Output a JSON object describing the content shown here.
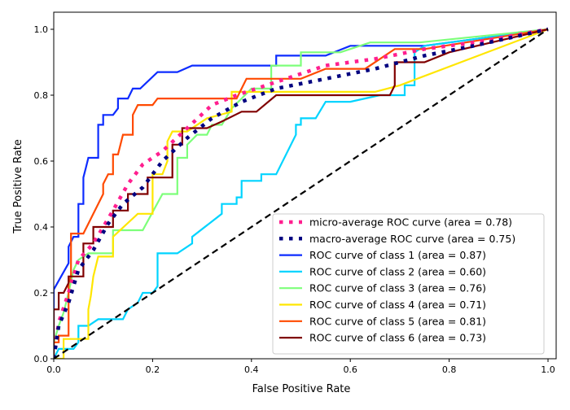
{
  "chart_data": {
    "type": "line",
    "title": "",
    "xlabel": "False Positive Rate",
    "ylabel": "True Positive Rate",
    "xlim": [
      0.0,
      1.0
    ],
    "ylim": [
      0.0,
      1.05
    ],
    "xticks": [
      "0.0",
      "0.2",
      "0.4",
      "0.6",
      "0.8",
      "1.0"
    ],
    "yticks": [
      "0.0",
      "0.2",
      "0.4",
      "0.6",
      "0.8",
      "1.0"
    ],
    "grid": false,
    "legend_placement": "lower-right",
    "series": [
      {
        "name": "micro-average ROC curve (area = 0.78)",
        "color": "#ff1f8f",
        "style": "dotted",
        "points": [
          [
            0,
            0
          ],
          [
            0.01,
            0.11
          ],
          [
            0.03,
            0.2
          ],
          [
            0.05,
            0.3
          ],
          [
            0.08,
            0.35
          ],
          [
            0.12,
            0.45
          ],
          [
            0.15,
            0.53
          ],
          [
            0.18,
            0.59
          ],
          [
            0.22,
            0.63
          ],
          [
            0.27,
            0.7
          ],
          [
            0.32,
            0.77
          ],
          [
            0.37,
            0.8
          ],
          [
            0.45,
            0.84
          ],
          [
            0.55,
            0.89
          ],
          [
            0.65,
            0.91
          ],
          [
            0.75,
            0.94
          ],
          [
            0.85,
            0.96
          ],
          [
            1,
            1
          ]
        ]
      },
      {
        "name": "macro-average ROC curve (area = 0.75)",
        "color": "#000080",
        "style": "dotted",
        "points": [
          [
            0,
            0
          ],
          [
            0.01,
            0.1
          ],
          [
            0.03,
            0.17
          ],
          [
            0.05,
            0.27
          ],
          [
            0.08,
            0.33
          ],
          [
            0.11,
            0.41
          ],
          [
            0.14,
            0.47
          ],
          [
            0.18,
            0.52
          ],
          [
            0.22,
            0.6
          ],
          [
            0.27,
            0.67
          ],
          [
            0.32,
            0.73
          ],
          [
            0.38,
            0.78
          ],
          [
            0.45,
            0.82
          ],
          [
            0.55,
            0.85
          ],
          [
            0.65,
            0.88
          ],
          [
            0.75,
            0.92
          ],
          [
            0.85,
            0.95
          ],
          [
            1,
            1
          ]
        ]
      },
      {
        "name": "ROC curve of class 1 (area = 0.87)",
        "color": "#0d2cff",
        "style": "solid",
        "points": [
          [
            0,
            0
          ],
          [
            0,
            0.21
          ],
          [
            0.03,
            0.29
          ],
          [
            0.03,
            0.34
          ],
          [
            0.04,
            0.37
          ],
          [
            0.05,
            0.37
          ],
          [
            0.05,
            0.47
          ],
          [
            0.06,
            0.47
          ],
          [
            0.06,
            0.55
          ],
          [
            0.065,
            0.58
          ],
          [
            0.07,
            0.61
          ],
          [
            0.09,
            0.61
          ],
          [
            0.09,
            0.71
          ],
          [
            0.1,
            0.71
          ],
          [
            0.1,
            0.74
          ],
          [
            0.12,
            0.74
          ],
          [
            0.13,
            0.76
          ],
          [
            0.13,
            0.79
          ],
          [
            0.15,
            0.79
          ],
          [
            0.16,
            0.82
          ],
          [
            0.175,
            0.82
          ],
          [
            0.21,
            0.87
          ],
          [
            0.25,
            0.87
          ],
          [
            0.28,
            0.89
          ],
          [
            0.45,
            0.89
          ],
          [
            0.45,
            0.92
          ],
          [
            0.55,
            0.92
          ],
          [
            0.6,
            0.95
          ],
          [
            0.75,
            0.95
          ],
          [
            1,
            1
          ]
        ]
      },
      {
        "name": "ROC curve of class 2 (area = 0.60)",
        "color": "#00d4ff",
        "style": "solid",
        "points": [
          [
            0,
            0
          ],
          [
            0.01,
            0.03
          ],
          [
            0.04,
            0.03
          ],
          [
            0.05,
            0.05
          ],
          [
            0.05,
            0.1
          ],
          [
            0.07,
            0.1
          ],
          [
            0.09,
            0.12
          ],
          [
            0.14,
            0.12
          ],
          [
            0.15,
            0.15
          ],
          [
            0.17,
            0.17
          ],
          [
            0.18,
            0.2
          ],
          [
            0.2,
            0.2
          ],
          [
            0.21,
            0.22
          ],
          [
            0.21,
            0.32
          ],
          [
            0.25,
            0.32
          ],
          [
            0.28,
            0.35
          ],
          [
            0.28,
            0.37
          ],
          [
            0.34,
            0.44
          ],
          [
            0.34,
            0.47
          ],
          [
            0.37,
            0.47
          ],
          [
            0.37,
            0.49
          ],
          [
            0.38,
            0.49
          ],
          [
            0.38,
            0.54
          ],
          [
            0.42,
            0.54
          ],
          [
            0.42,
            0.56
          ],
          [
            0.45,
            0.56
          ],
          [
            0.49,
            0.68
          ],
          [
            0.49,
            0.71
          ],
          [
            0.5,
            0.71
          ],
          [
            0.5,
            0.73
          ],
          [
            0.53,
            0.73
          ],
          [
            0.55,
            0.78
          ],
          [
            0.6,
            0.78
          ],
          [
            0.66,
            0.8
          ],
          [
            0.71,
            0.8
          ],
          [
            0.71,
            0.83
          ],
          [
            0.73,
            0.83
          ],
          [
            0.73,
            0.93
          ],
          [
            0.75,
            0.95
          ],
          [
            1,
            1
          ]
        ]
      },
      {
        "name": "ROC curve of class 3 (area = 0.76)",
        "color": "#7dff7a",
        "style": "solid",
        "points": [
          [
            0,
            0
          ],
          [
            0,
            0.05
          ],
          [
            0.01,
            0.1
          ],
          [
            0.02,
            0.14
          ],
          [
            0.03,
            0.2
          ],
          [
            0.04,
            0.27
          ],
          [
            0.05,
            0.3
          ],
          [
            0.07,
            0.32
          ],
          [
            0.12,
            0.32
          ],
          [
            0.12,
            0.39
          ],
          [
            0.18,
            0.39
          ],
          [
            0.22,
            0.5
          ],
          [
            0.25,
            0.5
          ],
          [
            0.25,
            0.61
          ],
          [
            0.27,
            0.61
          ],
          [
            0.27,
            0.65
          ],
          [
            0.29,
            0.68
          ],
          [
            0.31,
            0.68
          ],
          [
            0.32,
            0.71
          ],
          [
            0.34,
            0.71
          ],
          [
            0.36,
            0.76
          ],
          [
            0.38,
            0.79
          ],
          [
            0.4,
            0.82
          ],
          [
            0.44,
            0.82
          ],
          [
            0.44,
            0.89
          ],
          [
            0.5,
            0.89
          ],
          [
            0.5,
            0.93
          ],
          [
            0.58,
            0.93
          ],
          [
            0.64,
            0.96
          ],
          [
            0.74,
            0.96
          ],
          [
            1,
            1
          ]
        ]
      },
      {
        "name": "ROC curve of class 4 (area = 0.71)",
        "color": "#ffe600",
        "style": "solid",
        "points": [
          [
            0,
            0
          ],
          [
            0.02,
            0
          ],
          [
            0.02,
            0.06
          ],
          [
            0.07,
            0.06
          ],
          [
            0.07,
            0.15
          ],
          [
            0.075,
            0.19
          ],
          [
            0.08,
            0.25
          ],
          [
            0.09,
            0.31
          ],
          [
            0.12,
            0.31
          ],
          [
            0.12,
            0.37
          ],
          [
            0.17,
            0.44
          ],
          [
            0.2,
            0.44
          ],
          [
            0.2,
            0.56
          ],
          [
            0.22,
            0.56
          ],
          [
            0.23,
            0.6
          ],
          [
            0.23,
            0.66
          ],
          [
            0.24,
            0.69
          ],
          [
            0.27,
            0.69
          ],
          [
            0.31,
            0.73
          ],
          [
            0.36,
            0.75
          ],
          [
            0.36,
            0.81
          ],
          [
            0.65,
            0.81
          ],
          [
            0.7,
            0.83
          ],
          [
            1,
            1
          ]
        ]
      },
      {
        "name": "ROC curve of class 5 (area = 0.81)",
        "color": "#ff4a00",
        "style": "solid",
        "points": [
          [
            0,
            0
          ],
          [
            0,
            0.05
          ],
          [
            0.01,
            0.05
          ],
          [
            0.01,
            0.07
          ],
          [
            0.03,
            0.07
          ],
          [
            0.03,
            0.23
          ],
          [
            0.035,
            0.25
          ],
          [
            0.035,
            0.38
          ],
          [
            0.06,
            0.38
          ],
          [
            0.07,
            0.41
          ],
          [
            0.08,
            0.44
          ],
          [
            0.09,
            0.47
          ],
          [
            0.1,
            0.5
          ],
          [
            0.1,
            0.53
          ],
          [
            0.11,
            0.56
          ],
          [
            0.12,
            0.56
          ],
          [
            0.12,
            0.62
          ],
          [
            0.13,
            0.62
          ],
          [
            0.14,
            0.68
          ],
          [
            0.16,
            0.68
          ],
          [
            0.16,
            0.74
          ],
          [
            0.17,
            0.77
          ],
          [
            0.2,
            0.77
          ],
          [
            0.21,
            0.79
          ],
          [
            0.37,
            0.79
          ],
          [
            0.39,
            0.85
          ],
          [
            0.5,
            0.85
          ],
          [
            0.55,
            0.88
          ],
          [
            0.63,
            0.88
          ],
          [
            0.69,
            0.94
          ],
          [
            0.75,
            0.94
          ],
          [
            1,
            1
          ]
        ]
      },
      {
        "name": "ROC curve of class 6 (area = 0.73)",
        "color": "#800000",
        "style": "solid",
        "points": [
          [
            0,
            0
          ],
          [
            0,
            0.15
          ],
          [
            0.01,
            0.15
          ],
          [
            0.01,
            0.2
          ],
          [
            0.02,
            0.2
          ],
          [
            0.03,
            0.23
          ],
          [
            0.03,
            0.25
          ],
          [
            0.06,
            0.25
          ],
          [
            0.06,
            0.35
          ],
          [
            0.08,
            0.35
          ],
          [
            0.08,
            0.4
          ],
          [
            0.12,
            0.4
          ],
          [
            0.12,
            0.45
          ],
          [
            0.15,
            0.45
          ],
          [
            0.15,
            0.5
          ],
          [
            0.19,
            0.5
          ],
          [
            0.19,
            0.55
          ],
          [
            0.24,
            0.55
          ],
          [
            0.24,
            0.65
          ],
          [
            0.26,
            0.65
          ],
          [
            0.26,
            0.7
          ],
          [
            0.31,
            0.7
          ],
          [
            0.34,
            0.72
          ],
          [
            0.38,
            0.75
          ],
          [
            0.41,
            0.75
          ],
          [
            0.45,
            0.8
          ],
          [
            0.68,
            0.8
          ],
          [
            0.69,
            0.83
          ],
          [
            0.69,
            0.9
          ],
          [
            0.75,
            0.9
          ],
          [
            0.8,
            0.93
          ],
          [
            1,
            1
          ]
        ]
      }
    ],
    "reference_line": {
      "color": "#000000",
      "style": "dashed",
      "points": [
        [
          0,
          0
        ],
        [
          1,
          1
        ]
      ]
    }
  }
}
